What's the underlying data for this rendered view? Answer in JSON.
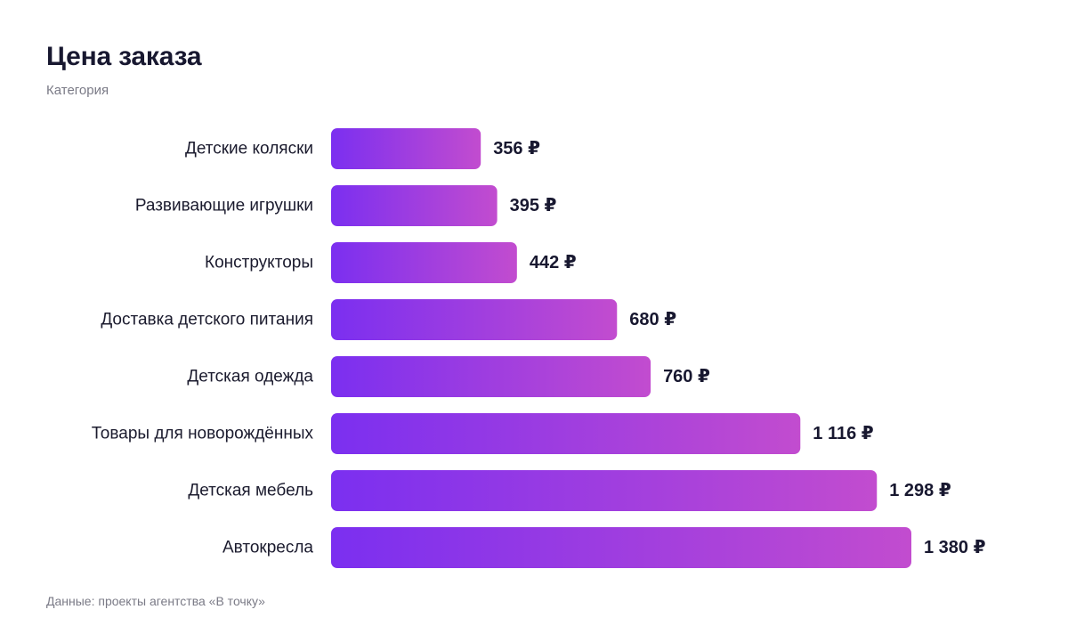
{
  "chart_data": {
    "type": "bar",
    "orientation": "horizontal",
    "title": "Цена заказа",
    "subtitle": "Категория",
    "categories": [
      "Детские коляски",
      "Развивающие игрушки",
      "Конструкторы",
      "Доставка детского питания",
      "Детская одежда",
      "Товары для новорождённых",
      "Детская мебель",
      "Автокресла"
    ],
    "values": [
      356,
      395,
      442,
      680,
      760,
      1116,
      1298,
      1380
    ],
    "value_labels": [
      "356 ₽",
      "395 ₽",
      "442 ₽",
      "680 ₽",
      "760 ₽",
      "1 116 ₽",
      "1 298 ₽",
      "1 380 ₽"
    ],
    "xlim": [
      0,
      1380
    ],
    "grid": false,
    "legend": "none",
    "bar_gradient": [
      "#7b2ff0",
      "#c24ccf"
    ]
  },
  "footer": {
    "source": "Данные: проекты агентства «В точку»"
  }
}
